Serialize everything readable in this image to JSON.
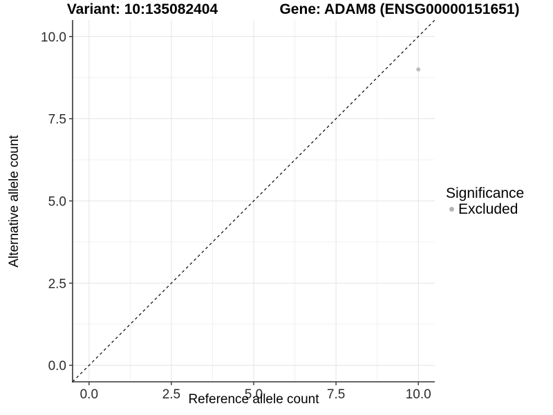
{
  "header": {
    "variant_title": "Variant: 10:135082404",
    "gene_title": "Gene: ADAM8 (ENSG00000151651)"
  },
  "chart_data": {
    "type": "scatter",
    "title": "Variant: 10:135082404   Gene: ADAM8 (ENSG00000151651)",
    "xlabel": "Reference allele count",
    "ylabel": "Alternative allele count",
    "xlim": [
      -0.5,
      10.5
    ],
    "ylim": [
      -0.5,
      10.5
    ],
    "x_ticks": {
      "values": [
        0,
        2.5,
        5,
        7.5,
        10
      ],
      "labels": [
        "0.0",
        "2.5",
        "5.0",
        "7.5",
        "10.0"
      ]
    },
    "y_ticks": {
      "values": [
        0,
        2.5,
        5,
        7.5,
        10
      ],
      "labels": [
        "0.0",
        "2.5",
        "5.0",
        "7.5",
        "10.0"
      ]
    },
    "minor_ticks": [
      1.25,
      3.75,
      6.25,
      8.75
    ],
    "grid": true,
    "reference_line": {
      "type": "identity y = x",
      "style": "dashed",
      "color": "#000000"
    },
    "series": [
      {
        "name": "Excluded",
        "color": "#bdbdbd",
        "points": [
          {
            "x": 10,
            "y": 9
          }
        ]
      }
    ],
    "legend": {
      "title": "Significance",
      "position": "right",
      "items": [
        {
          "label": "Excluded",
          "color": "#b5b5b5"
        }
      ]
    },
    "theme": {
      "axis_color": "#333333",
      "grid_major_color": "#e4e4e4",
      "grid_minor_color": "#f0f0f0",
      "point_color": "#bdbdbd"
    }
  }
}
